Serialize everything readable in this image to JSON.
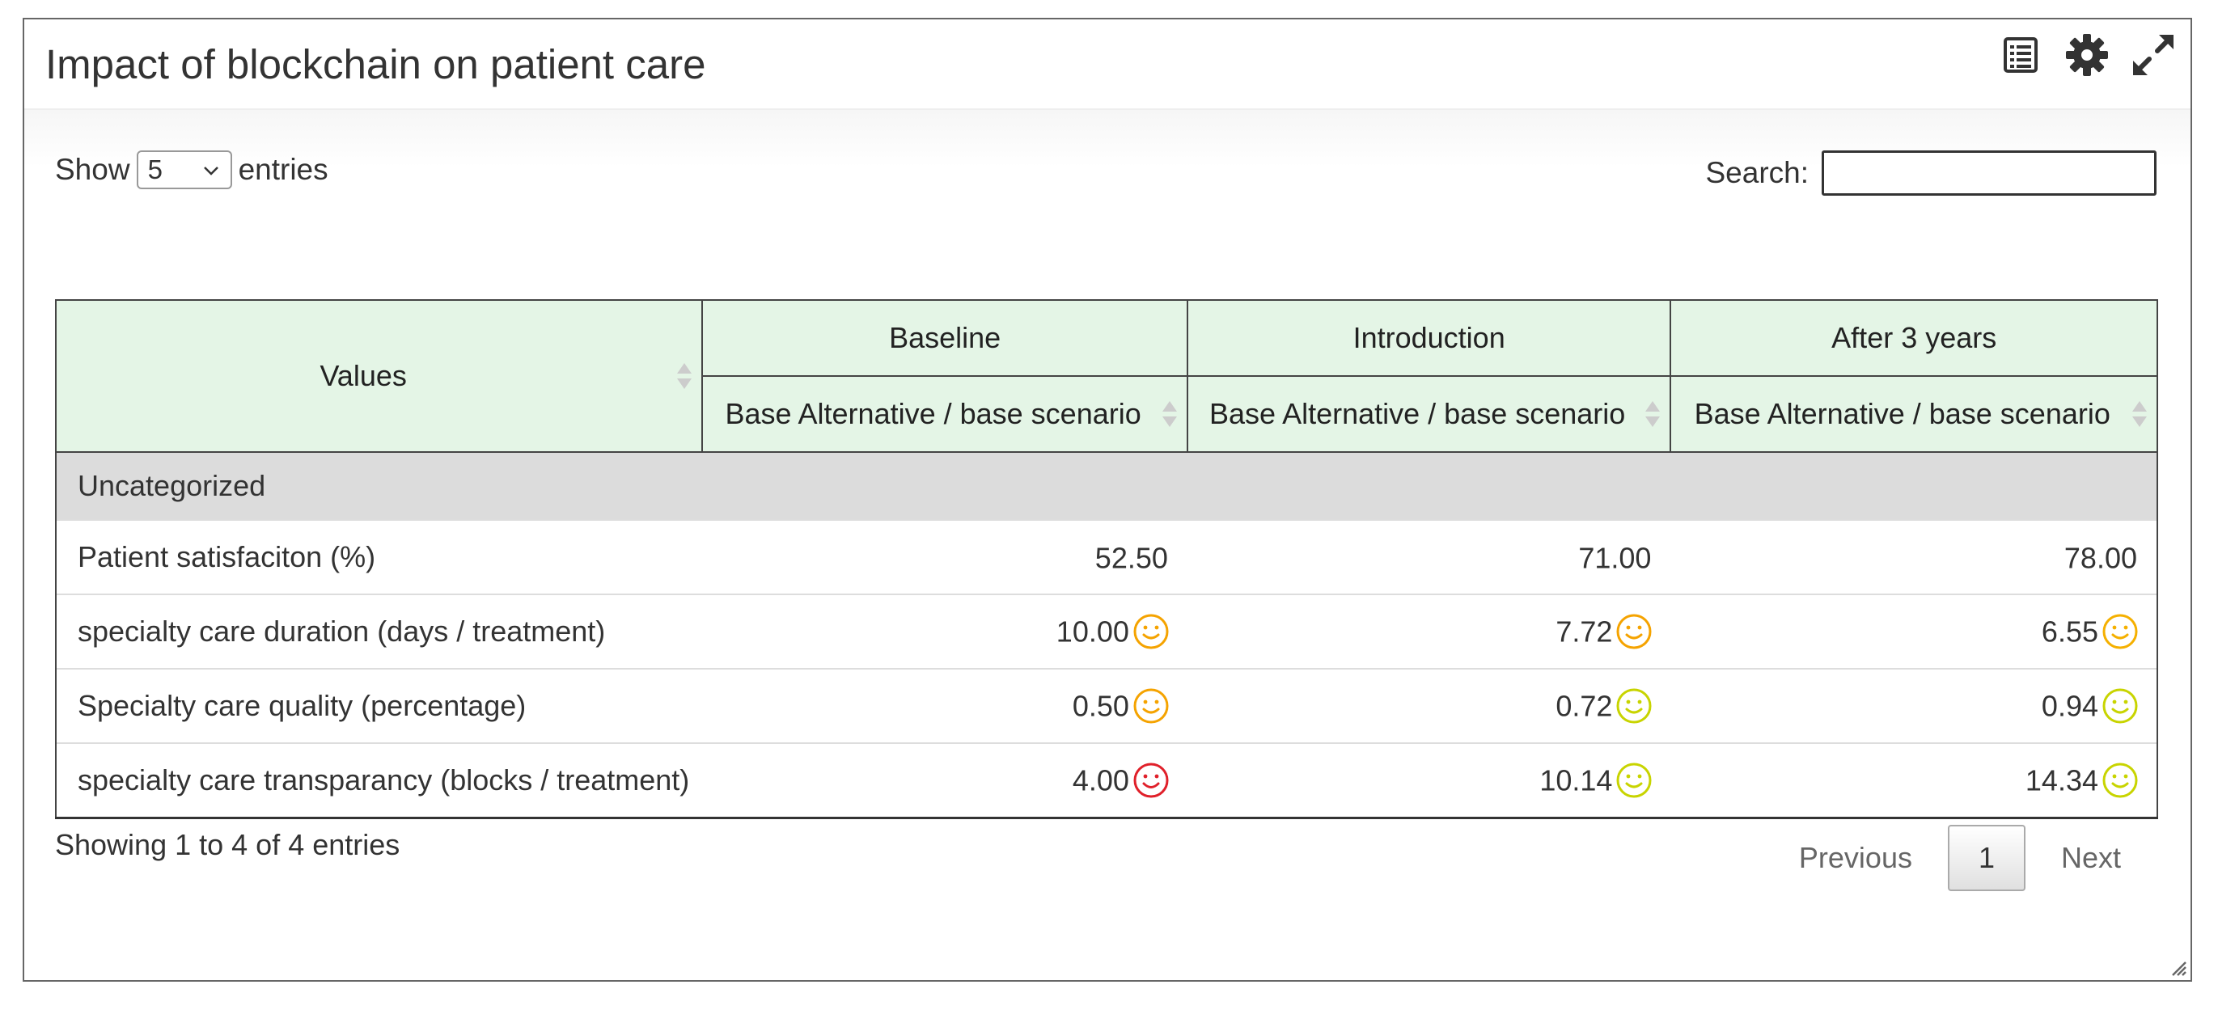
{
  "panel": {
    "title": "Impact of blockchain on patient care",
    "icons": [
      "list-icon",
      "gear-icon",
      "expand-icon"
    ]
  },
  "controls": {
    "show_label": "Show",
    "page_length": "5",
    "entries_label": "entries",
    "search_label": "Search:",
    "search_value": ""
  },
  "table": {
    "header_values": "Values",
    "groups": [
      "Baseline",
      "Introduction",
      "After 3 years"
    ],
    "sub_headers": [
      "Base Alternative / base scenario",
      "Base Alternative / base scenario",
      "Base Alternative / base scenario"
    ],
    "category": "Uncategorized",
    "rows": [
      {
        "label": "Patient satisfaciton (%)",
        "cells": [
          {
            "value": "52.50",
            "face": null
          },
          {
            "value": "71.00",
            "face": null
          },
          {
            "value": "78.00",
            "face": null
          }
        ]
      },
      {
        "label": "specialty care duration (days / treatment)",
        "cells": [
          {
            "value": "10.00",
            "face": "#f5a300"
          },
          {
            "value": "7.72",
            "face": "#f5a300"
          },
          {
            "value": "6.55",
            "face": "#f5b000"
          }
        ]
      },
      {
        "label": "Specialty care quality (percentage)",
        "cells": [
          {
            "value": "0.50",
            "face": "#f5a300"
          },
          {
            "value": "0.72",
            "face": "#c8d400"
          },
          {
            "value": "0.94",
            "face": "#c8d400"
          }
        ]
      },
      {
        "label": "specialty care transparancy (blocks / treatment)",
        "cells": [
          {
            "value": "4.00",
            "face": "#e0202a"
          },
          {
            "value": "10.14",
            "face": "#c8d400"
          },
          {
            "value": "14.34",
            "face": "#c8d400"
          }
        ]
      }
    ]
  },
  "footer": {
    "info": "Showing 1 to 4 of 4 entries",
    "previous": "Previous",
    "current_page": "1",
    "next": "Next"
  },
  "colors": {
    "header_bg": "#e4f5e6",
    "category_bg": "#dcdcdc"
  }
}
